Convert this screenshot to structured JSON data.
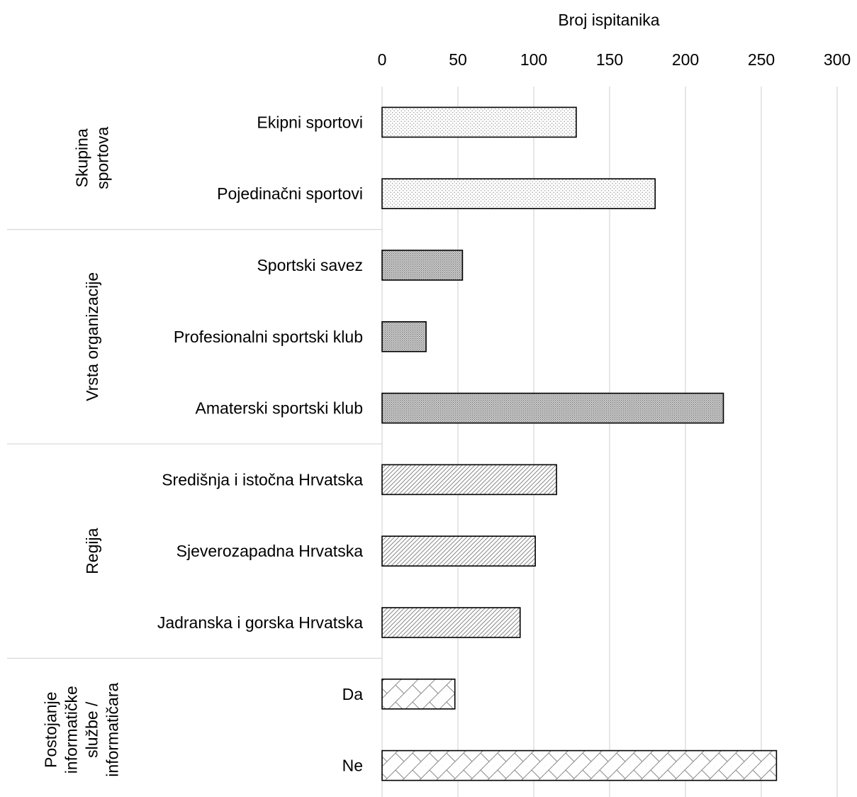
{
  "chart_data": {
    "type": "bar",
    "orientation": "horizontal",
    "title": "",
    "xlabel": "Broj ispitanika",
    "ylabel": "",
    "xlim": [
      0,
      300
    ],
    "x_ticks": [
      0,
      50,
      100,
      150,
      200,
      250,
      300
    ],
    "x_axis_position": "top",
    "grid": true,
    "legend": "none",
    "groups": [
      {
        "name": "Skupina sportova",
        "name_lines": [
          "Skupina",
          "sportova"
        ],
        "pattern": "dots-fine",
        "categories": [
          "Ekipni sportovi",
          "Pojedinačni sportovi"
        ],
        "values": [
          128,
          180
        ]
      },
      {
        "name": "Vrsta organizacije",
        "name_lines": [
          "Vrsta organizacije"
        ],
        "pattern": "dots-dense",
        "categories": [
          "Sportski savez",
          "Profesionalni sportski klub",
          "Amaterski sportski klub"
        ],
        "values": [
          53,
          29,
          225
        ]
      },
      {
        "name": "Regija",
        "name_lines": [
          "Regija"
        ],
        "pattern": "diagonal",
        "categories": [
          "Središnja i istočna Hrvatska",
          "Sjeverozapadna Hrvatska",
          "Jadranska i gorska Hrvatska"
        ],
        "values": [
          115,
          101,
          91
        ]
      },
      {
        "name": "Postojanje informatičke službe / informatičara",
        "name_lines": [
          "Postojanje",
          "informatičke",
          "službe /",
          "informatičara"
        ],
        "pattern": "brick",
        "categories": [
          "Da",
          "Ne"
        ],
        "values": [
          48,
          260
        ]
      }
    ],
    "colors": {
      "bar_fill": "#ffffff",
      "bar_stroke": "#000000",
      "pattern_ink": "#7f7f7f",
      "grid": "#d9d9d9",
      "divider": "#d9d9d9"
    }
  }
}
